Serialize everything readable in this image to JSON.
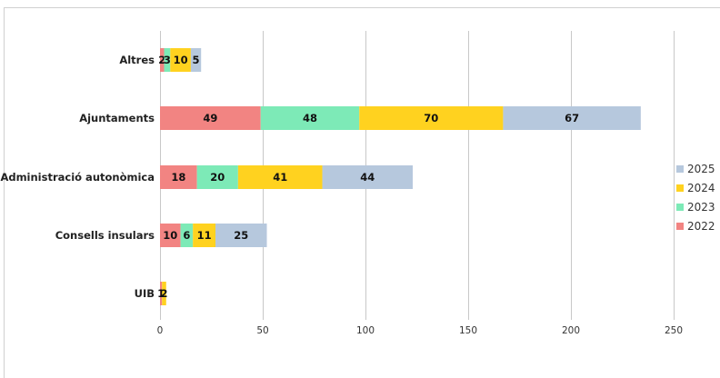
{
  "chart_data": {
    "type": "bar",
    "orientation": "horizontal",
    "stacked": true,
    "categories": [
      "Altres",
      "Ajuntaments",
      "Administració autonòmica",
      "Consells insulars",
      "UIB"
    ],
    "series": [
      {
        "name": "2022",
        "color": "#f28482",
        "values": [
          2,
          49,
          18,
          10,
          1
        ]
      },
      {
        "name": "2023",
        "color": "#7deab7",
        "values": [
          3,
          48,
          20,
          6,
          0
        ]
      },
      {
        "name": "2024",
        "color": "#ffd21f",
        "values": [
          10,
          70,
          41,
          11,
          2
        ]
      },
      {
        "name": "2025",
        "color": "#b6c8dd",
        "values": [
          5,
          67,
          44,
          25,
          0
        ]
      }
    ],
    "xlim": [
      0,
      250
    ],
    "xticks": [
      0,
      50,
      100,
      150,
      200,
      250
    ],
    "grid": "vertical",
    "legend": "right",
    "legend_order": [
      "2025",
      "2024",
      "2023",
      "2022"
    ],
    "title": "",
    "xlabel": "",
    "ylabel": ""
  }
}
